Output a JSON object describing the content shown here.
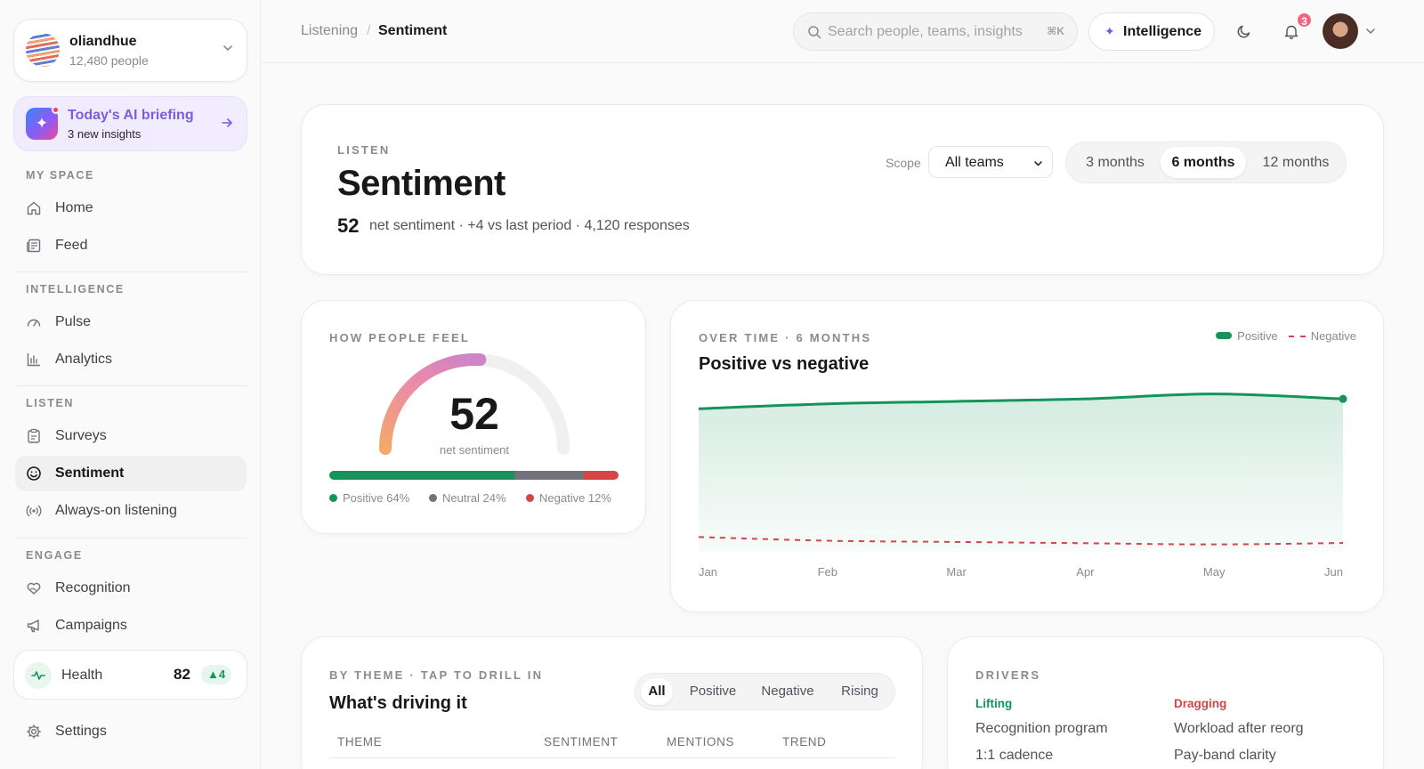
{
  "org": {
    "name": "oliandhue",
    "people": "12,480 people"
  },
  "briefing": {
    "title": "Today's AI briefing",
    "subtitle": "3 new insights"
  },
  "sidebar": {
    "sections": [
      "MY SPACE",
      "INTELLIGENCE",
      "LISTEN",
      "ENGAGE"
    ],
    "items": [
      {
        "label": "Home",
        "icon": "home-icon"
      },
      {
        "label": "Feed",
        "icon": "feed-icon"
      },
      {
        "label": "Pulse",
        "icon": "gauge-icon"
      },
      {
        "label": "Analytics",
        "icon": "bar-chart-icon"
      },
      {
        "label": "Surveys",
        "icon": "clipboard-icon"
      },
      {
        "label": "Sentiment",
        "icon": "smile-icon",
        "active": true
      },
      {
        "label": "Always-on listening",
        "icon": "broadcast-icon"
      },
      {
        "label": "Recognition",
        "icon": "heart-hand-icon"
      },
      {
        "label": "Campaigns",
        "icon": "megaphone-icon"
      }
    ],
    "health": {
      "label": "Health",
      "score": "82",
      "delta": "▲4"
    },
    "settings": "Settings"
  },
  "topbar": {
    "breadcrumb": [
      "Listening",
      "Sentiment"
    ],
    "search_placeholder": "Search people, teams, insights",
    "search_shortcut": "⌘K",
    "intelligence_label": "Intelligence",
    "notifications": "3"
  },
  "hero": {
    "eyebrow": "LISTEN",
    "title": "Sentiment",
    "score": "52",
    "summary": "net sentiment · +4 vs last period · 4,120 responses",
    "scope_label": "Scope",
    "scope_value": "All teams",
    "ranges": [
      "3 months",
      "6 months",
      "12 months"
    ],
    "active_range": "6 months"
  },
  "gauge": {
    "eyebrow": "HOW PEOPLE FEEL",
    "value": "52",
    "caption": "net sentiment",
    "fill_fraction": 0.52,
    "distribution": [
      {
        "label": "Positive 64%",
        "share": 64,
        "color": "#15935a"
      },
      {
        "label": "Neutral 24%",
        "share": 24,
        "color": "#71717a"
      },
      {
        "label": "Negative 12%",
        "share": 12,
        "color": "#d64545"
      }
    ]
  },
  "trend": {
    "eyebrow": "OVER TIME · 6 MONTHS",
    "title": "Positive vs negative",
    "legend_positive": "Positive",
    "legend_negative": "Negative"
  },
  "chart_data": {
    "type": "line",
    "x": [
      "Jan",
      "Feb",
      "Mar",
      "Apr",
      "May",
      "Jun"
    ],
    "series": [
      {
        "name": "Positive",
        "color": "#15935a",
        "values": [
          58,
          60,
          61,
          62,
          64,
          62
        ]
      },
      {
        "name": "Negative",
        "color": "#d64545",
        "values": [
          6,
          4.5,
          4,
          3.5,
          3,
          3.6
        ]
      }
    ],
    "ylim": [
      0,
      70
    ],
    "grid": false,
    "legend": "top-right"
  },
  "themes": {
    "eyebrow": "BY THEME · TAP TO DRILL IN",
    "title": "What's driving it",
    "filters": [
      "All",
      "Positive",
      "Negative",
      "Rising"
    ],
    "active_filter": "All",
    "columns": [
      "THEME",
      "SENTIMENT",
      "MENTIONS",
      "TREND"
    ]
  },
  "drivers": {
    "eyebrow": "DRIVERS",
    "lifting_label": "Lifting",
    "dragging_label": "Dragging",
    "lifting": [
      "Recognition program",
      "1:1 cadence"
    ],
    "dragging": [
      "Workload after reorg",
      "Pay-band clarity"
    ]
  }
}
